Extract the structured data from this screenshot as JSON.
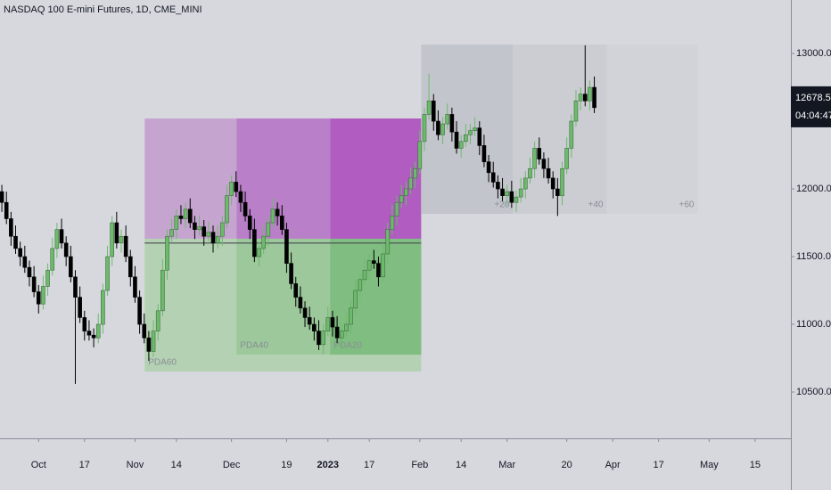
{
  "chart_data": {
    "type": "candlestick",
    "title": "NASDAQ 100 E-mini Futures, 1D, CME_MINI",
    "up_color": "#6dba6d",
    "down_color": "#000000",
    "xlim": [
      -0.4,
      171.6
    ],
    "ylim": [
      10158,
      13395
    ],
    "xticks": [
      {
        "value": 8,
        "label": "Oct"
      },
      {
        "value": 18,
        "label": "17"
      },
      {
        "value": 29,
        "label": "Nov"
      },
      {
        "value": 38,
        "label": "14"
      },
      {
        "value": 50,
        "label": "Dec"
      },
      {
        "value": 62,
        "label": "19"
      },
      {
        "value": 71,
        "label": "2023"
      },
      {
        "value": 80,
        "label": "17"
      },
      {
        "value": 91,
        "label": "Feb"
      },
      {
        "value": 100,
        "label": "14"
      },
      {
        "value": 110,
        "label": "Mar"
      },
      {
        "value": 123,
        "label": "20"
      },
      {
        "value": 133,
        "label": "Apr"
      },
      {
        "value": 143,
        "label": "17"
      },
      {
        "value": 154,
        "label": "May"
      },
      {
        "value": 164,
        "label": "15"
      }
    ],
    "yticks": [
      {
        "value": 13000,
        "label": "13000.00"
      },
      {
        "value": 12500,
        "label": "12500.00"
      },
      {
        "value": 12000,
        "label": "12000.00"
      },
      {
        "value": 11500,
        "label": "11500.00"
      },
      {
        "value": 11000,
        "label": "11000.00"
      },
      {
        "value": 10500,
        "label": "10500.00"
      }
    ],
    "last_price": {
      "value": 12678.5,
      "label": "12678.50",
      "countdown": "04:04:47"
    },
    "zones": [
      {
        "x": [
          31.1,
          91.3
        ],
        "y": [
          10651,
          11632
        ],
        "color": "#b4d2b3",
        "label": "PDA60",
        "label_corner": "bottom-left"
      },
      {
        "x": [
          51.1,
          91.3
        ],
        "y": [
          10776,
          11632
        ],
        "color": "#9cc89b",
        "label": "PDA40",
        "label_corner": "bottom-left"
      },
      {
        "x": [
          71.5,
          91.3
        ],
        "y": [
          10776,
          11632
        ],
        "color": "#80bd80",
        "label": "PDA20",
        "label_corner": "bottom-left"
      },
      {
        "x": [
          31.1,
          51.1
        ],
        "y": [
          11632,
          12520
        ],
        "color": "#c6a4d0"
      },
      {
        "x": [
          51.1,
          71.5
        ],
        "y": [
          11632,
          12520
        ],
        "color": "#b97fc8"
      },
      {
        "x": [
          71.5,
          91.3
        ],
        "y": [
          11632,
          12520
        ],
        "color": "#b05cc0"
      },
      {
        "x": [
          91.3,
          111.3
        ],
        "y": [
          11816,
          13066
        ],
        "color": "#c3c5cc",
        "label": "+20",
        "label_corner": "bottom-right"
      },
      {
        "x": [
          111.3,
          131.7
        ],
        "y": [
          11816,
          13066
        ],
        "color": "#cbcdd3",
        "label": "+40",
        "label_corner": "bottom-right"
      },
      {
        "x": [
          131.7,
          151.5
        ],
        "y": [
          11816,
          13066
        ],
        "color": "#d1d3d9",
        "label": "+60",
        "label_corner": "bottom-right"
      }
    ],
    "level": {
      "value": 11600,
      "x": [
        31.1,
        91.3
      ]
    },
    "candles": [
      [
        11980,
        12030,
        11830,
        11900
      ],
      [
        11900,
        11980,
        11740,
        11780
      ],
      [
        11780,
        11830,
        11580,
        11650
      ],
      [
        11650,
        11730,
        11520,
        11560
      ],
      [
        11560,
        11610,
        11430,
        11500
      ],
      [
        11500,
        11580,
        11380,
        11420
      ],
      [
        11420,
        11470,
        11280,
        11350
      ],
      [
        11350,
        11430,
        11200,
        11240
      ],
      [
        11240,
        11290,
        11080,
        11150
      ],
      [
        11150,
        11360,
        11110,
        11280
      ],
      [
        11280,
        11450,
        11210,
        11400
      ],
      [
        11400,
        11640,
        11360,
        11560
      ],
      [
        11560,
        11750,
        11490,
        11700
      ],
      [
        11700,
        11780,
        11560,
        11600
      ],
      [
        11600,
        11650,
        11430,
        11500
      ],
      [
        11500,
        11580,
        11310,
        11350
      ],
      [
        11350,
        11400,
        10560,
        11200
      ],
      [
        11200,
        11280,
        11010,
        11050
      ],
      [
        11050,
        11100,
        10880,
        10950
      ],
      [
        10950,
        11030,
        10880,
        10920
      ],
      [
        10920,
        10970,
        10830,
        10900
      ],
      [
        10900,
        11080,
        10860,
        11000
      ],
      [
        11000,
        11300,
        10930,
        11250
      ],
      [
        11250,
        11580,
        11210,
        11500
      ],
      [
        11500,
        11800,
        11430,
        11750
      ],
      [
        11750,
        11830,
        11560,
        11600
      ],
      [
        11600,
        11700,
        11530,
        11650
      ],
      [
        11650,
        11730,
        11460,
        11500
      ],
      [
        11500,
        11550,
        11280,
        11350
      ],
      [
        11350,
        11430,
        11160,
        11200
      ],
      [
        11200,
        11250,
        10930,
        11000
      ],
      [
        11000,
        11080,
        10860,
        10900
      ],
      [
        10900,
        10950,
        10730,
        10800
      ],
      [
        10800,
        11030,
        10760,
        10950
      ],
      [
        10950,
        11150,
        10880,
        11100
      ],
      [
        11100,
        11480,
        11060,
        11400
      ],
      [
        11400,
        11700,
        11330,
        11650
      ],
      [
        11650,
        11780,
        11610,
        11700
      ],
      [
        11700,
        11850,
        11630,
        11800
      ],
      [
        11800,
        11880,
        11740,
        11780
      ],
      [
        11780,
        11900,
        11710,
        11850
      ],
      [
        11850,
        11930,
        11710,
        11750
      ],
      [
        11750,
        11800,
        11630,
        11700
      ],
      [
        11700,
        11800,
        11660,
        11720
      ],
      [
        11720,
        11770,
        11580,
        11650
      ],
      [
        11650,
        11760,
        11610,
        11680
      ],
      [
        11680,
        11730,
        11530,
        11600
      ],
      [
        11600,
        11730,
        11560,
        11650
      ],
      [
        11650,
        11800,
        11580,
        11750
      ],
      [
        11750,
        12030,
        11710,
        11950
      ],
      [
        11950,
        12100,
        11880,
        12050
      ],
      [
        12050,
        12130,
        11940,
        11980
      ],
      [
        11980,
        12030,
        11830,
        11900
      ],
      [
        11900,
        11980,
        11760,
        11800
      ],
      [
        11800,
        11850,
        11630,
        11700
      ],
      [
        11700,
        11780,
        11460,
        11500
      ],
      [
        11500,
        11610,
        11430,
        11560
      ],
      [
        11560,
        11730,
        11520,
        11650
      ],
      [
        11650,
        11800,
        11580,
        11750
      ],
      [
        11750,
        11930,
        11710,
        11850
      ],
      [
        11850,
        11900,
        11730,
        11800
      ],
      [
        11800,
        11880,
        11660,
        11700
      ],
      [
        11700,
        11750,
        11380,
        11450
      ],
      [
        11450,
        11530,
        11260,
        11300
      ],
      [
        11300,
        11350,
        11130,
        11200
      ],
      [
        11200,
        11280,
        11080,
        11120
      ],
      [
        11120,
        11170,
        10980,
        11050
      ],
      [
        11050,
        11130,
        10960,
        11000
      ],
      [
        11000,
        11050,
        10880,
        10950
      ],
      [
        10950,
        11030,
        10810,
        10850
      ],
      [
        10850,
        11000,
        10780,
        10950
      ],
      [
        10950,
        11130,
        10910,
        11050
      ],
      [
        11050,
        11100,
        10910,
        10980
      ],
      [
        10980,
        11060,
        10860,
        10900
      ],
      [
        10900,
        11000,
        10830,
        10950
      ],
      [
        10950,
        11080,
        10910,
        11000
      ],
      [
        11000,
        11170,
        10930,
        11120
      ],
      [
        11120,
        11330,
        11080,
        11250
      ],
      [
        11250,
        11380,
        11180,
        11330
      ],
      [
        11330,
        11480,
        11290,
        11400
      ],
      [
        11400,
        11520,
        11330,
        11470
      ],
      [
        11470,
        11550,
        11410,
        11450
      ],
      [
        11450,
        11500,
        11280,
        11350
      ],
      [
        11350,
        11600,
        11310,
        11520
      ],
      [
        11520,
        11750,
        11450,
        11700
      ],
      [
        11700,
        11880,
        11660,
        11800
      ],
      [
        11800,
        11950,
        11730,
        11900
      ],
      [
        11900,
        12030,
        11860,
        11950
      ],
      [
        11950,
        12050,
        11880,
        12000
      ],
      [
        12000,
        12160,
        11960,
        12080
      ],
      [
        12080,
        12200,
        12010,
        12150
      ],
      [
        12150,
        12430,
        12110,
        12350
      ],
      [
        12350,
        12600,
        12280,
        12550
      ],
      [
        12550,
        12850,
        12510,
        12650
      ],
      [
        12650,
        12700,
        12430,
        12500
      ],
      [
        12500,
        12580,
        12360,
        12400
      ],
      [
        12400,
        12530,
        12330,
        12480
      ],
      [
        12480,
        12630,
        12440,
        12550
      ],
      [
        12550,
        12600,
        12350,
        12420
      ],
      [
        12420,
        12500,
        12260,
        12300
      ],
      [
        12300,
        12400,
        12230,
        12350
      ],
      [
        12350,
        12480,
        12310,
        12400
      ],
      [
        12400,
        12480,
        12330,
        12430
      ],
      [
        12430,
        12530,
        12390,
        12450
      ],
      [
        12450,
        12500,
        12250,
        12320
      ],
      [
        12320,
        12400,
        12160,
        12200
      ],
      [
        12200,
        12250,
        12050,
        12120
      ],
      [
        12120,
        12200,
        12010,
        12050
      ],
      [
        12050,
        12100,
        11930,
        12000
      ],
      [
        12000,
        12080,
        11910,
        11950
      ],
      [
        11950,
        12030,
        11880,
        11980
      ],
      [
        11980,
        12060,
        11860,
        11900
      ],
      [
        11900,
        11990,
        11830,
        11940
      ],
      [
        11940,
        12080,
        11900,
        12000
      ],
      [
        12000,
        12130,
        11930,
        12080
      ],
      [
        12080,
        12230,
        12040,
        12150
      ],
      [
        12150,
        12350,
        12080,
        12300
      ],
      [
        12300,
        12380,
        12180,
        12220
      ],
      [
        12220,
        12270,
        12080,
        12150
      ],
      [
        12150,
        12230,
        12040,
        12080
      ],
      [
        12080,
        12130,
        11930,
        12000
      ],
      [
        12000,
        12080,
        11800,
        11950
      ],
      [
        11950,
        12200,
        11880,
        12150
      ],
      [
        12150,
        12380,
        12110,
        12300
      ],
      [
        12300,
        12550,
        12230,
        12500
      ],
      [
        12500,
        12730,
        12460,
        12650
      ],
      [
        12650,
        12750,
        12580,
        12700
      ],
      [
        12700,
        13060,
        12610,
        12650
      ],
      [
        12650,
        12800,
        12580,
        12750
      ],
      [
        12750,
        12830,
        12560,
        12600
      ]
    ]
  }
}
